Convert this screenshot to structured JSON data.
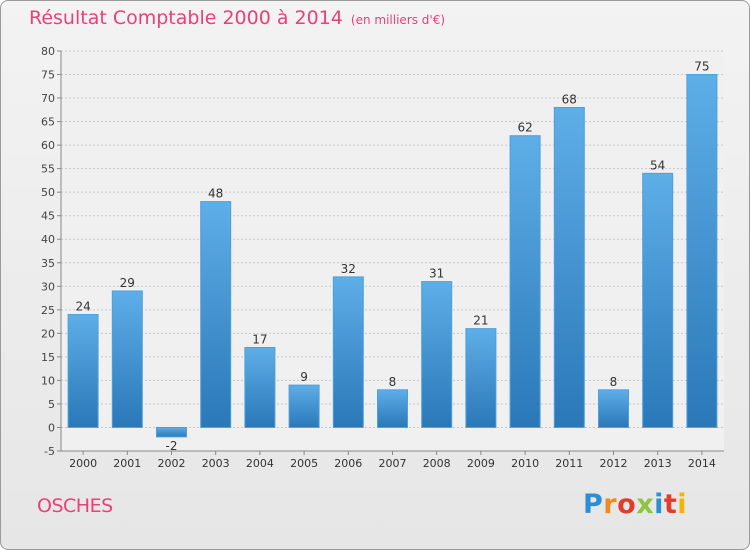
{
  "title": "Résultat Comptable 2000 à 2014",
  "subtitle": "(en milliers d'€)",
  "commune": "OSCHES",
  "logo": "Proxiti",
  "colors": {
    "bar_top": "#5eaee8",
    "bar_bottom": "#2a78b8",
    "title": "#e8417a",
    "grid": "#c8c8c8"
  },
  "chart_data": {
    "type": "bar",
    "title": "Résultat Comptable 2000 à 2014",
    "subtitle": "(en milliers d'€)",
    "categories": [
      "2000",
      "2001",
      "2002",
      "2003",
      "2004",
      "2005",
      "2006",
      "2007",
      "2008",
      "2009",
      "2010",
      "2011",
      "2012",
      "2013",
      "2014"
    ],
    "values": [
      24,
      29,
      -2,
      48,
      17,
      9,
      32,
      8,
      31,
      21,
      62,
      68,
      8,
      54,
      75
    ],
    "ylim": [
      -5,
      80
    ],
    "yticks": [
      -5,
      0,
      5,
      10,
      15,
      20,
      25,
      30,
      35,
      40,
      45,
      50,
      55,
      60,
      65,
      70,
      75,
      80
    ],
    "grid": true,
    "xlabel": "",
    "ylabel": ""
  }
}
